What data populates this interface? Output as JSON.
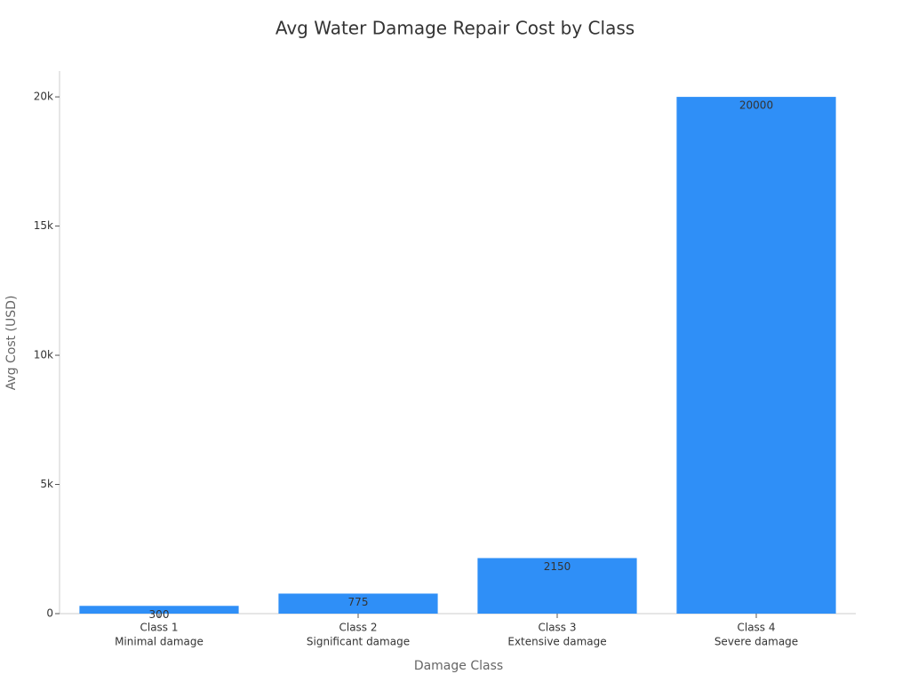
{
  "chart_data": {
    "type": "bar",
    "title": "Avg Water Damage Repair Cost by Class",
    "x_label": "Damage Class",
    "y_label": "Avg Cost (USD)",
    "categories": [
      [
        "Class 1",
        "Minimal damage"
      ],
      [
        "Class 2",
        "Significant damage"
      ],
      [
        "Class 3",
        "Extensive damage"
      ],
      [
        "Class 4",
        "Severe damage"
      ]
    ],
    "values": [
      300,
      775,
      2150,
      20000
    ],
    "color": "#2f8ff7",
    "ylim": [
      0,
      21000
    ],
    "yticks": [
      0,
      {
        "value": 5000,
        "label": "5k"
      },
      {
        "value": 10000,
        "label": "10k"
      },
      {
        "value": 15000,
        "label": "15k"
      },
      {
        "value": 20000,
        "label": "20k"
      }
    ],
    "grid": false
  }
}
